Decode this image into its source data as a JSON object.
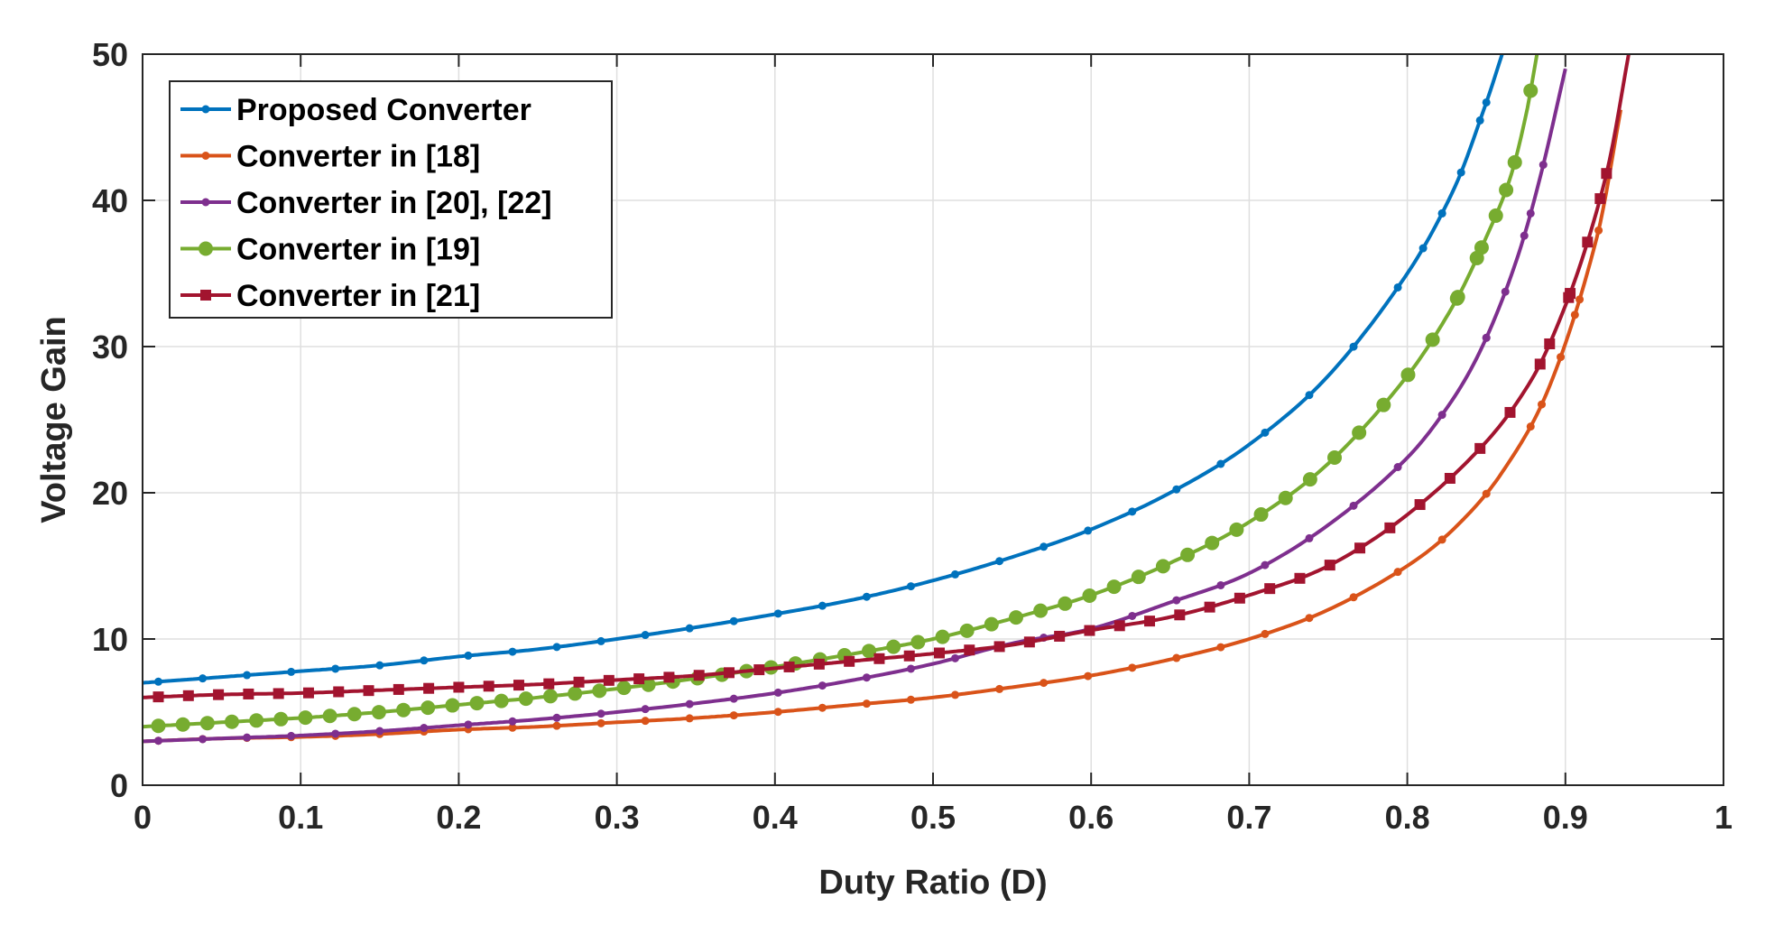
{
  "chart_data": {
    "type": "line",
    "title": "",
    "xlabel": "Duty Ratio (D)",
    "ylabel": "Voltage Gain",
    "xlim": [
      0,
      1
    ],
    "ylim": [
      0,
      50
    ],
    "grid": true,
    "legend_position": "top-left",
    "xticks": [
      0,
      0.1,
      0.2,
      0.3,
      0.4,
      0.5,
      0.6,
      0.7,
      0.8,
      0.9,
      1
    ],
    "xtick_labels": [
      "0",
      "0.1",
      "0.2",
      "0.3",
      "0.4",
      "0.5",
      "0.6",
      "0.7",
      "0.8",
      "0.9",
      "1"
    ],
    "yticks": [
      0,
      10,
      20,
      30,
      40,
      50
    ],
    "ytick_labels": [
      "0",
      "10",
      "20",
      "30",
      "40",
      "50"
    ],
    "series": [
      {
        "name": "Proposed Converter",
        "color": "#0072BD",
        "marker": "dot",
        "x": [
          0.0,
          0.05,
          0.1,
          0.15,
          0.2,
          0.25,
          0.3,
          0.35,
          0.4,
          0.45,
          0.5,
          0.55,
          0.6,
          0.65,
          0.7,
          0.75,
          0.8,
          0.83,
          0.85,
          0.86
        ],
        "y": [
          7.0,
          7.4,
          7.8,
          8.2,
          8.8,
          9.3,
          10.0,
          10.8,
          11.7,
          12.7,
          14.0,
          15.6,
          17.5,
          20.0,
          23.3,
          28.0,
          35.0,
          40.9,
          46.7,
          50.0
        ]
      },
      {
        "name": "Converter in [18]",
        "color": "#D95319",
        "marker": "dot",
        "x": [
          0.0,
          0.05,
          0.1,
          0.15,
          0.2,
          0.25,
          0.3,
          0.35,
          0.4,
          0.45,
          0.5,
          0.55,
          0.6,
          0.65,
          0.7,
          0.75,
          0.8,
          0.83,
          0.86,
          0.89,
          0.92,
          0.935
        ],
        "y": [
          3.0,
          3.2,
          3.3,
          3.5,
          3.8,
          4.0,
          4.3,
          4.6,
          5.0,
          5.5,
          6.0,
          6.7,
          7.5,
          8.6,
          10.0,
          12.0,
          15.0,
          17.6,
          21.4,
          27.3,
          37.5,
          46.2
        ]
      },
      {
        "name": "Converter in [20], [22]",
        "color": "#7E2F8E",
        "marker": "dot",
        "x": [
          0.0,
          0.05,
          0.1,
          0.15,
          0.2,
          0.25,
          0.3,
          0.35,
          0.4,
          0.45,
          0.5,
          0.55,
          0.6,
          0.65,
          0.7,
          0.75,
          0.8,
          0.83,
          0.85,
          0.87,
          0.885,
          0.9
        ],
        "y": [
          3.0,
          3.2,
          3.4,
          3.7,
          4.1,
          4.5,
          5.0,
          5.6,
          6.3,
          7.2,
          8.3,
          9.7,
          10.7,
          12.5,
          14.5,
          17.8,
          22.4,
          26.6,
          30.6,
          36.2,
          42.0,
          49.0
        ]
      },
      {
        "name": "Converter in [19]",
        "color": "#77AC30",
        "marker": "circle",
        "x": [
          0.0,
          0.05,
          0.1,
          0.15,
          0.2,
          0.25,
          0.3,
          0.35,
          0.4,
          0.45,
          0.5,
          0.55,
          0.6,
          0.65,
          0.7,
          0.75,
          0.8,
          0.83,
          0.85,
          0.865,
          0.875,
          0.882
        ],
        "y": [
          4.0,
          4.3,
          4.6,
          5.0,
          5.5,
          6.0,
          6.6,
          7.3,
          8.1,
          9.0,
          10.0,
          11.4,
          13.0,
          15.2,
          18.0,
          22.0,
          28.0,
          33.0,
          37.5,
          41.5,
          45.8,
          50.0
        ]
      },
      {
        "name": "Converter in [21]",
        "color": "#A2142F",
        "marker": "square",
        "x": [
          0.0,
          0.05,
          0.1,
          0.15,
          0.2,
          0.25,
          0.3,
          0.35,
          0.4,
          0.45,
          0.5,
          0.55,
          0.6,
          0.65,
          0.7,
          0.75,
          0.8,
          0.85,
          0.88,
          0.9,
          0.915,
          0.928,
          0.94
        ],
        "y": [
          6.0,
          6.2,
          6.3,
          6.5,
          6.7,
          6.9,
          7.2,
          7.5,
          8.0,
          8.5,
          9.0,
          9.6,
          10.6,
          11.5,
          13.0,
          15.0,
          18.5,
          23.5,
          28.0,
          32.8,
          37.5,
          42.8,
          50.0
        ]
      }
    ]
  }
}
